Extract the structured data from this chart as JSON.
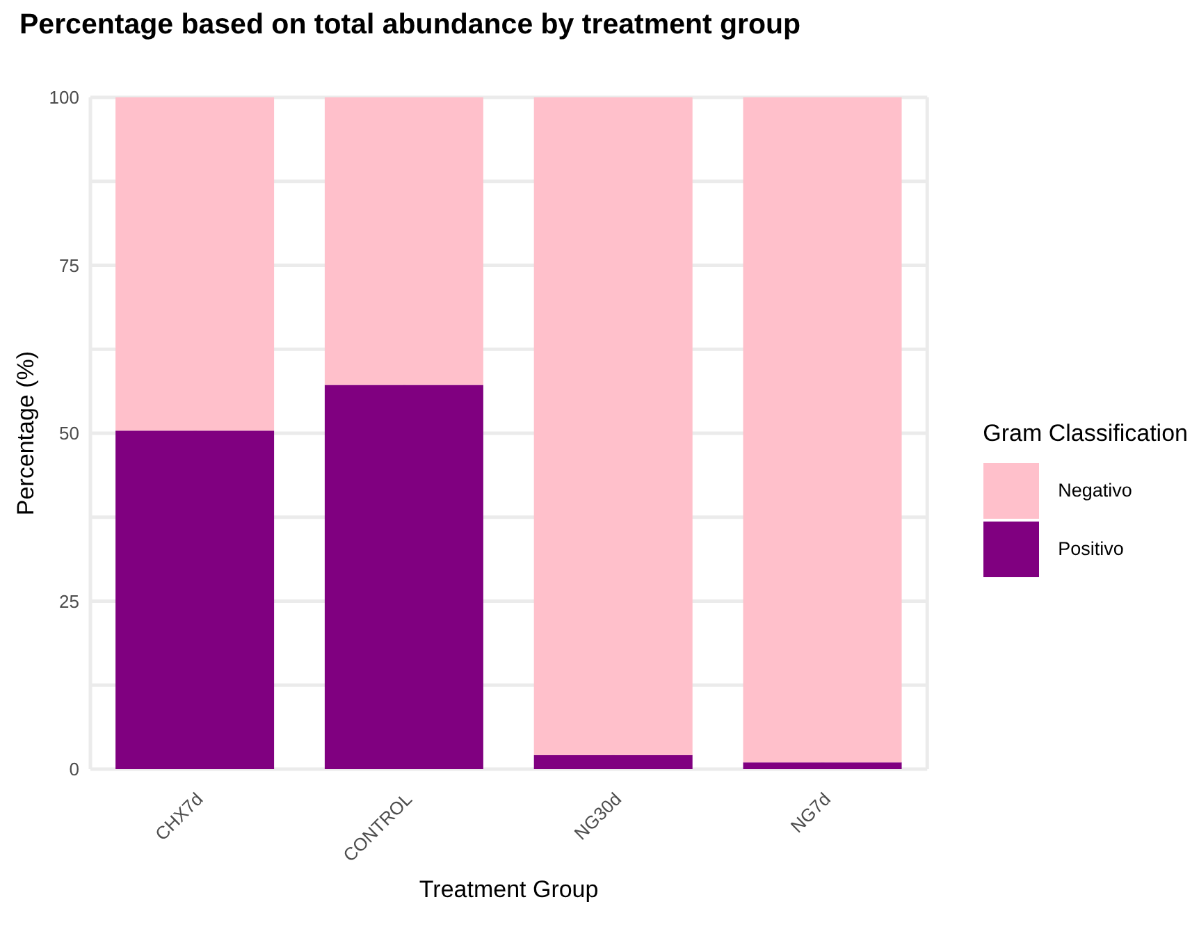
{
  "chart_data": {
    "type": "bar",
    "title": "Percentage based on total abundance by treatment group",
    "xlabel": "Treatment Group",
    "ylabel": "Percentage (%)",
    "legend_title": "Gram Classification",
    "categories": [
      "CHX7d",
      "CONTROL",
      "NG30d",
      "NG7d"
    ],
    "stacked": true,
    "series": [
      {
        "name": "Positivo",
        "color": "#800080",
        "values": [
          50.4,
          57.2,
          2.1,
          1.0
        ]
      },
      {
        "name": "Negativo",
        "color": "#ffc0cb",
        "values": [
          49.6,
          42.8,
          97.9,
          99.0
        ]
      }
    ],
    "ylim": [
      0,
      100
    ],
    "yticks": [
      0,
      {
        "value": 12.5,
        "label": null
      },
      25,
      {
        "value": 37.5,
        "label": null
      },
      50,
      {
        "value": 62.5,
        "label": null
      },
      75,
      {
        "value": 87.5,
        "label": null
      },
      100
    ],
    "grid": true,
    "legend": "right"
  }
}
